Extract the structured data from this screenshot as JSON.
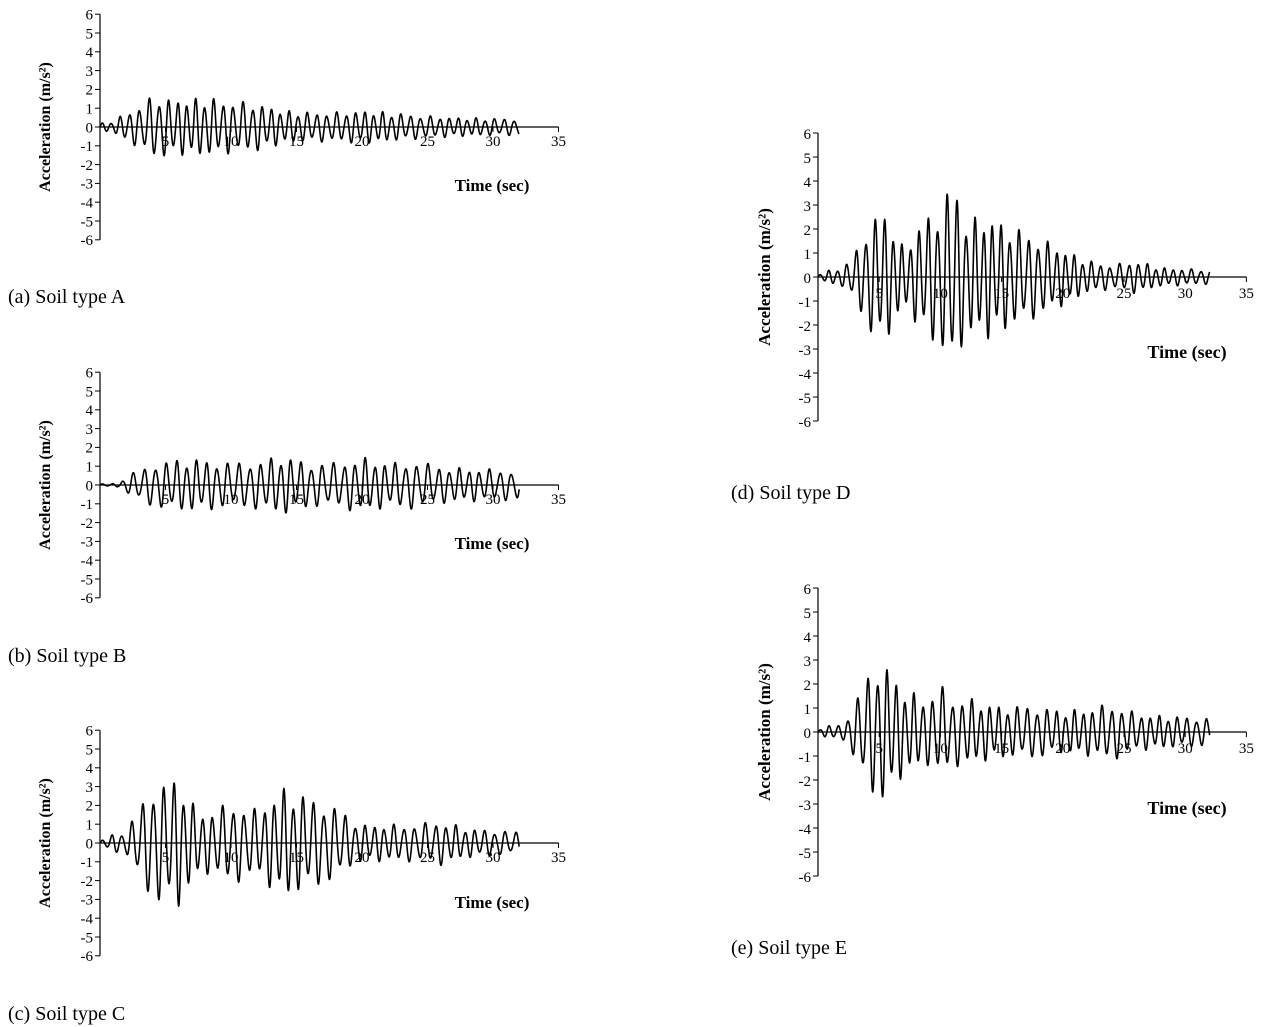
{
  "chart_data": [
    {
      "type": "line",
      "caption": "(a) Soil type A",
      "ylabel": "Acceleration (m/s²)",
      "xlabel": "Time (sec)",
      "ylim": [
        -6,
        6
      ],
      "xlim": [
        0,
        35
      ],
      "yticks": [
        -6,
        -5,
        -4,
        -3,
        -2,
        -1,
        0,
        1,
        2,
        3,
        4,
        5,
        6
      ],
      "xticks": [
        5,
        10,
        15,
        20,
        25,
        30,
        35
      ],
      "duration": 32,
      "envelope": [
        [
          0,
          0.2
        ],
        [
          1,
          0.3
        ],
        [
          2,
          0.8
        ],
        [
          3,
          1.1
        ],
        [
          4,
          1.7
        ],
        [
          6,
          1.5
        ],
        [
          8,
          1.6
        ],
        [
          10,
          1.4
        ],
        [
          12,
          1.3
        ],
        [
          14,
          0.9
        ],
        [
          16,
          0.8
        ],
        [
          18,
          0.8
        ],
        [
          20,
          0.9
        ],
        [
          22,
          0.8
        ],
        [
          25,
          0.6
        ],
        [
          28,
          0.5
        ],
        [
          32,
          0.45
        ]
      ],
      "frequency": 1.4
    },
    {
      "type": "line",
      "caption": "(b) Soil type B",
      "ylabel": "Acceleration (m/s²)",
      "xlabel": "Time (sec)",
      "ylim": [
        -6,
        6
      ],
      "xlim": [
        0,
        35
      ],
      "yticks": [
        -6,
        -5,
        -4,
        -3,
        -2,
        -1,
        0,
        1,
        2,
        3,
        4,
        5,
        6
      ],
      "xticks": [
        5,
        10,
        15,
        20,
        25,
        30,
        35
      ],
      "duration": 32,
      "envelope": [
        [
          0,
          0.05
        ],
        [
          1.5,
          0.1
        ],
        [
          2,
          0.5
        ],
        [
          3,
          0.8
        ],
        [
          4,
          1.2
        ],
        [
          6,
          1.4
        ],
        [
          8,
          1.4
        ],
        [
          10,
          1.2
        ],
        [
          12,
          1.3
        ],
        [
          14,
          1.6
        ],
        [
          16,
          1.2
        ],
        [
          18,
          1.2
        ],
        [
          20,
          1.5
        ],
        [
          22,
          1.2
        ],
        [
          24,
          1.3
        ],
        [
          26,
          1.0
        ],
        [
          28,
          0.9
        ],
        [
          32,
          0.8
        ]
      ],
      "frequency": 1.25
    },
    {
      "type": "line",
      "caption": "(c) Soil type C",
      "ylabel": "Acceleration (m/s²)",
      "xlabel": "Time (sec)",
      "ylim": [
        -6,
        6
      ],
      "xlim": [
        0,
        35
      ],
      "yticks": [
        -6,
        -5,
        -4,
        -3,
        -2,
        -1,
        0,
        1,
        2,
        3,
        4,
        5,
        6
      ],
      "xticks": [
        5,
        10,
        15,
        20,
        25,
        30,
        35
      ],
      "duration": 32,
      "envelope": [
        [
          0,
          0.1
        ],
        [
          1,
          0.5
        ],
        [
          2,
          0.6
        ],
        [
          3,
          2.0
        ],
        [
          4,
          3.2
        ],
        [
          5,
          3.3
        ],
        [
          6,
          3.6
        ],
        [
          7,
          2.2
        ],
        [
          8,
          1.6
        ],
        [
          10,
          2.2
        ],
        [
          12,
          1.8
        ],
        [
          14,
          3.0
        ],
        [
          16,
          2.5
        ],
        [
          18,
          2.0
        ],
        [
          19,
          1.4
        ],
        [
          20,
          1.0
        ],
        [
          24,
          1.0
        ],
        [
          26,
          1.2
        ],
        [
          28,
          0.8
        ],
        [
          32,
          0.6
        ]
      ],
      "frequency": 1.3
    },
    {
      "type": "line",
      "caption": "(d) Soil type D",
      "ylabel": "Acceleration (m/s²)",
      "xlabel": "Time (sec)",
      "ylim": [
        -6,
        6
      ],
      "xlim": [
        0,
        35
      ],
      "yticks": [
        -6,
        -5,
        -4,
        -3,
        -2,
        -1,
        0,
        1,
        2,
        3,
        4,
        5,
        6
      ],
      "xticks": [
        5,
        10,
        15,
        20,
        25,
        30,
        35
      ],
      "duration": 32,
      "envelope": [
        [
          0,
          0.1
        ],
        [
          1,
          0.3
        ],
        [
          2,
          0.4
        ],
        [
          3,
          1.0
        ],
        [
          4,
          2.2
        ],
        [
          5,
          2.9
        ],
        [
          6,
          2.4
        ],
        [
          7,
          1.2
        ],
        [
          8,
          2.0
        ],
        [
          9,
          2.7
        ],
        [
          10,
          3.0
        ],
        [
          11,
          4.2
        ],
        [
          12,
          2.6
        ],
        [
          13,
          2.5
        ],
        [
          14,
          2.6
        ],
        [
          16,
          2.1
        ],
        [
          18,
          1.7
        ],
        [
          20,
          1.2
        ],
        [
          22,
          0.7
        ],
        [
          24,
          0.5
        ],
        [
          26,
          0.7
        ],
        [
          28,
          0.4
        ],
        [
          32,
          0.3
        ]
      ],
      "frequency": 1.35
    },
    {
      "type": "line",
      "caption": "(e) Soil type E",
      "ylabel": "Acceleration (m/s²)",
      "xlabel": "Time (sec)",
      "ylim": [
        -6,
        6
      ],
      "xlim": [
        0,
        35
      ],
      "yticks": [
        -6,
        -5,
        -4,
        -3,
        -2,
        -1,
        0,
        1,
        2,
        3,
        4,
        5,
        6
      ],
      "xticks": [
        5,
        10,
        15,
        20,
        25,
        30,
        35
      ],
      "duration": 32,
      "envelope": [
        [
          0,
          0.1
        ],
        [
          1,
          0.3
        ],
        [
          2,
          0.3
        ],
        [
          3,
          1.2
        ],
        [
          4,
          2.4
        ],
        [
          5,
          3.1
        ],
        [
          6,
          2.6
        ],
        [
          7,
          1.8
        ],
        [
          8,
          1.6
        ],
        [
          9,
          1.4
        ],
        [
          10,
          2.0
        ],
        [
          11,
          1.4
        ],
        [
          12,
          1.5
        ],
        [
          13,
          1.3
        ],
        [
          15,
          1.1
        ],
        [
          18,
          1.1
        ],
        [
          20,
          0.9
        ],
        [
          22,
          1.0
        ],
        [
          24,
          1.2
        ],
        [
          26,
          0.8
        ],
        [
          28,
          0.7
        ],
        [
          32,
          0.6
        ]
      ],
      "frequency": 1.3
    }
  ]
}
